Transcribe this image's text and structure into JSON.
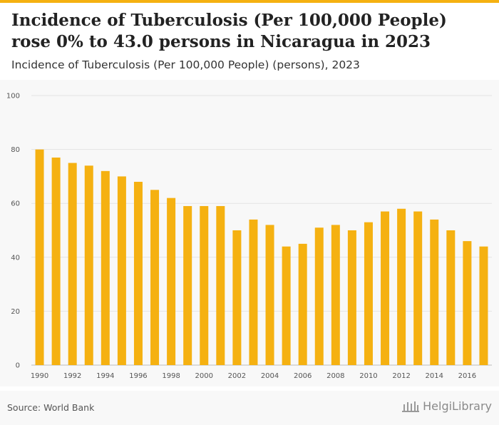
{
  "header": {
    "title": "Incidence of Tuberculosis (Per 100,000 People) rose 0% to 43.0 persons in Nicaragua in 2023",
    "subtitle": "Incidence of Tuberculosis (Per 100,000 People) (persons), 2023"
  },
  "footer": {
    "source": "Source: World Bank",
    "logo_text": "HelgiLibrary"
  },
  "colors": {
    "bar": "#f5b111",
    "accent": "#f5b111",
    "grid": "#e4e4e4"
  },
  "chart_data": {
    "type": "bar",
    "categories": [
      "1990",
      "1991",
      "1992",
      "1993",
      "1994",
      "1995",
      "1996",
      "1997",
      "1998",
      "1999",
      "2000",
      "2001",
      "2002",
      "2003",
      "2004",
      "2005",
      "2006",
      "2007",
      "2008",
      "2009",
      "2010",
      "2011",
      "2012",
      "2013",
      "2014",
      "2015",
      "2016",
      "2017"
    ],
    "values": [
      80,
      77,
      75,
      74,
      72,
      70,
      68,
      65,
      62,
      59,
      59,
      59,
      50,
      54,
      52,
      44,
      45,
      51,
      52,
      50,
      53,
      57,
      58,
      57,
      54,
      50,
      46,
      44
    ],
    "x_tick_labels": [
      "1990",
      "1992",
      "1994",
      "1996",
      "1998",
      "2000",
      "2002",
      "2004",
      "2006",
      "2008",
      "2010",
      "2012",
      "2014",
      "2016"
    ],
    "y_ticks": [
      0,
      20,
      40,
      60,
      80,
      100
    ],
    "ylim": [
      0,
      100
    ],
    "grid": true
  }
}
